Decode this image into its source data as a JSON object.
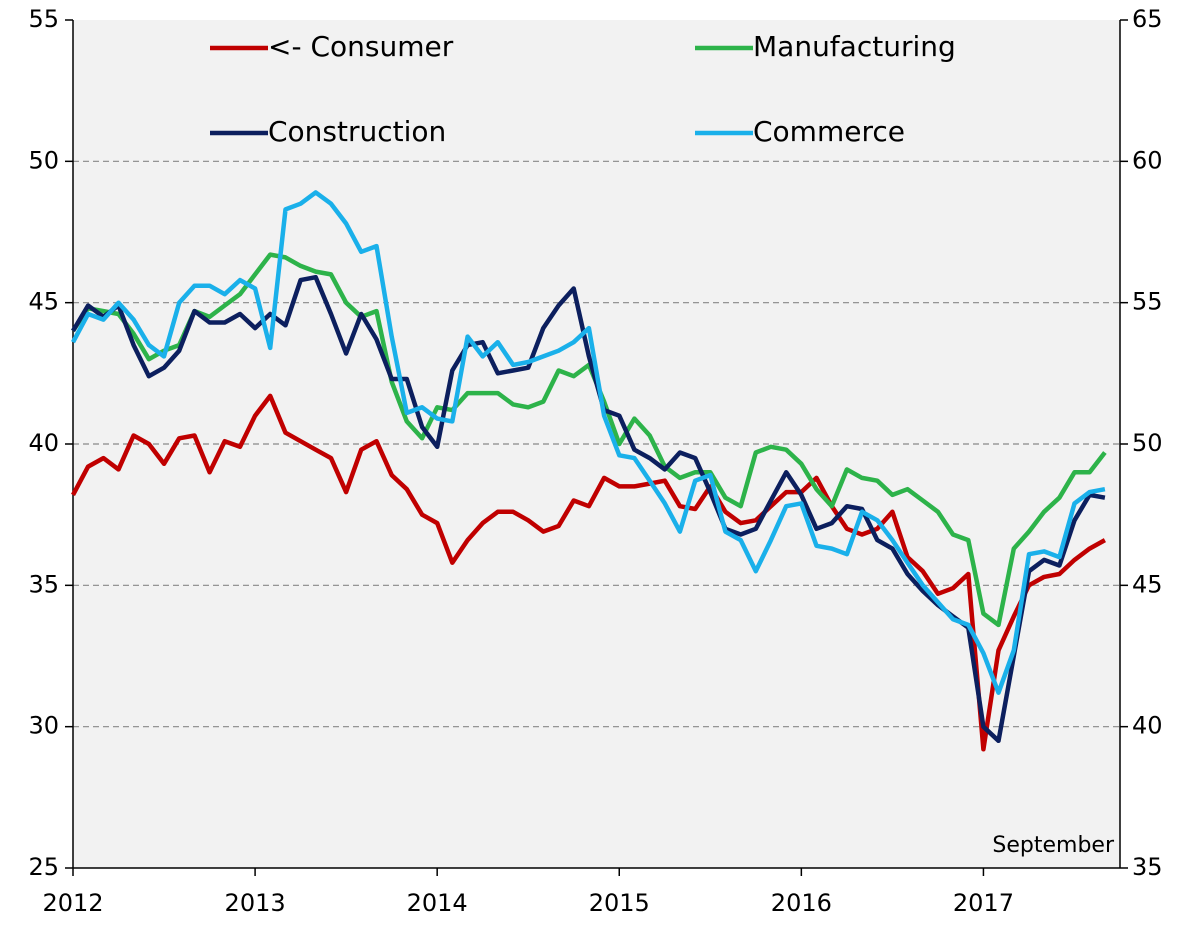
{
  "chart_data": {
    "type": "line",
    "x": [
      2012,
      2012.083,
      2012.167,
      2012.25,
      2012.333,
      2012.417,
      2012.5,
      2012.583,
      2012.667,
      2012.75,
      2012.833,
      2012.917,
      2013,
      2013.083,
      2013.167,
      2013.25,
      2013.333,
      2013.417,
      2013.5,
      2013.583,
      2013.667,
      2013.75,
      2013.833,
      2013.917,
      2014,
      2014.083,
      2014.167,
      2014.25,
      2014.333,
      2014.417,
      2014.5,
      2014.583,
      2014.667,
      2014.75,
      2014.833,
      2014.917,
      2015,
      2015.083,
      2015.167,
      2015.25,
      2015.333,
      2015.417,
      2015.5,
      2015.583,
      2015.667,
      2015.75,
      2015.833,
      2015.917,
      2016,
      2016.083,
      2016.167,
      2016.25,
      2016.333,
      2016.417,
      2016.5,
      2016.583,
      2016.667,
      2016.75,
      2016.833,
      2016.917,
      2017,
      2017.083,
      2017.167,
      2017.25,
      2017.333,
      2017.417,
      2017.5,
      2017.583,
      2017.667
    ],
    "series": [
      {
        "name": "<- Consumer",
        "color": "#c00000",
        "axis": "y",
        "values": [
          38.2,
          39.2,
          39.5,
          39.1,
          40.3,
          40.0,
          39.3,
          40.2,
          40.3,
          39.0,
          40.1,
          39.9,
          41.0,
          41.7,
          40.4,
          40.1,
          39.8,
          39.5,
          38.3,
          39.8,
          40.1,
          38.9,
          38.4,
          37.5,
          37.2,
          35.8,
          36.6,
          37.2,
          37.6,
          37.6,
          37.3,
          36.9,
          37.1,
          38.0,
          37.8,
          38.8,
          38.5,
          38.5,
          38.6,
          38.7,
          37.8,
          37.7,
          38.5,
          37.6,
          37.2,
          37.3,
          37.8,
          38.3,
          38.3,
          38.8,
          37.8,
          37.0,
          36.8,
          37.0,
          37.6,
          36.0,
          35.5,
          34.7,
          34.9,
          35.4,
          29.2,
          32.7,
          33.9,
          35.0,
          35.3,
          35.4,
          35.9,
          36.3,
          36.6
        ]
      },
      {
        "name": "Manufacturing",
        "color": "#2db34a",
        "axis": "y2",
        "values": [
          54.0,
          54.8,
          54.7,
          54.6,
          53.9,
          53.0,
          53.3,
          53.5,
          54.7,
          54.5,
          54.9,
          55.3,
          56.0,
          56.7,
          56.6,
          56.3,
          56.1,
          56.0,
          55.0,
          54.5,
          54.7,
          52.2,
          50.8,
          50.2,
          51.3,
          51.2,
          51.8,
          51.8,
          51.8,
          51.4,
          51.3,
          51.5,
          52.6,
          52.4,
          52.8,
          51.5,
          50.0,
          50.9,
          50.3,
          49.2,
          48.8,
          49.0,
          49.0,
          48.1,
          47.8,
          49.7,
          49.9,
          49.8,
          49.3,
          48.4,
          47.8,
          49.1,
          48.8,
          48.7,
          48.2,
          48.4,
          48.0,
          47.6,
          46.8,
          46.6,
          44.0,
          43.6,
          46.3,
          46.9,
          47.6,
          48.1,
          49.0,
          49.0,
          49.7
        ]
      },
      {
        "name": "Construction",
        "color": "#0c1f5e",
        "axis": "y2",
        "values": [
          54.0,
          54.9,
          54.5,
          54.9,
          53.5,
          52.4,
          52.7,
          53.3,
          54.7,
          54.3,
          54.3,
          54.6,
          54.1,
          54.6,
          54.2,
          55.8,
          55.9,
          54.6,
          53.2,
          54.6,
          53.7,
          52.3,
          52.3,
          50.6,
          49.9,
          52.6,
          53.5,
          53.6,
          52.5,
          52.6,
          52.7,
          54.1,
          54.9,
          55.5,
          53.1,
          51.2,
          51.0,
          49.8,
          49.5,
          49.1,
          49.7,
          49.5,
          48.3,
          47.0,
          46.8,
          47.0,
          48.0,
          49.0,
          48.2,
          47.0,
          47.2,
          47.8,
          47.7,
          46.6,
          46.3,
          45.4,
          44.8,
          44.3,
          43.9,
          43.5,
          40.0,
          39.5,
          42.5,
          45.5,
          45.9,
          45.7,
          47.3,
          48.2,
          48.1
        ]
      },
      {
        "name": "Commerce",
        "color": "#1ab0ea",
        "axis": "y2",
        "values": [
          53.6,
          54.6,
          54.4,
          55.0,
          54.4,
          53.5,
          53.1,
          55.0,
          55.6,
          55.6,
          55.3,
          55.8,
          55.5,
          53.4,
          58.3,
          58.5,
          58.9,
          58.5,
          57.8,
          56.8,
          57.0,
          53.8,
          51.1,
          51.3,
          50.9,
          50.8,
          53.8,
          53.1,
          53.6,
          52.8,
          52.9,
          53.1,
          53.3,
          53.6,
          54.1,
          51.0,
          49.6,
          49.5,
          48.7,
          47.9,
          46.9,
          48.7,
          48.9,
          46.9,
          46.6,
          45.5,
          46.6,
          47.8,
          47.9,
          46.4,
          46.3,
          46.1,
          47.6,
          47.3,
          46.6,
          45.8,
          45.0,
          44.4,
          43.8,
          43.6,
          42.6,
          41.2,
          42.7,
          46.1,
          46.2,
          46.0,
          47.9,
          48.3,
          48.4
        ]
      }
    ],
    "xlim": [
      2012,
      2017.75
    ],
    "xticks": [
      2012,
      2013,
      2014,
      2015,
      2016,
      2017
    ],
    "ylim": [
      25,
      55
    ],
    "yticks": [
      25,
      30,
      35,
      40,
      45,
      50,
      55
    ],
    "y2lim": [
      35,
      65
    ],
    "y2ticks": [
      35,
      40,
      45,
      50,
      55,
      60,
      65
    ],
    "grid": true,
    "legend": "top",
    "annotation": "September"
  }
}
